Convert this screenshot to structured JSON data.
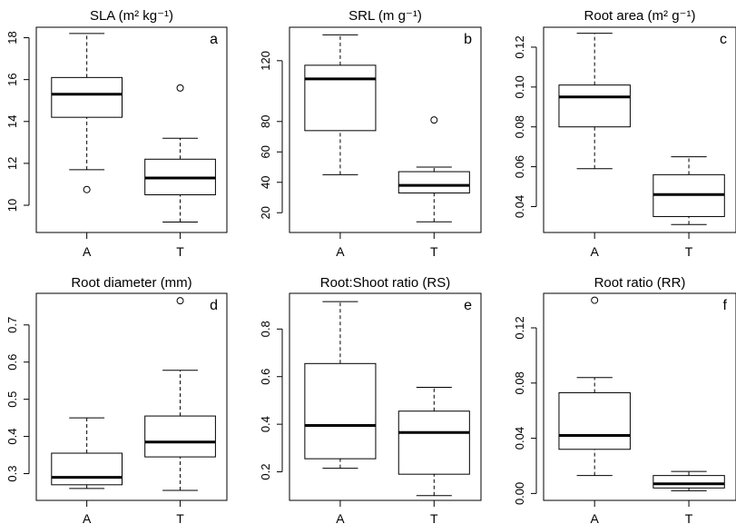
{
  "chart_data": [
    {
      "type": "box",
      "title": "SLA (m² kg⁻¹)",
      "panel_letter": "a",
      "categories": [
        "A",
        "T"
      ],
      "yticks": [
        10,
        12,
        14,
        16,
        18
      ],
      "ylim": [
        8.7,
        18.5
      ],
      "boxes": [
        {
          "category": "A",
          "whisker_low": 11.7,
          "q1": 14.2,
          "median": 15.3,
          "q3": 16.1,
          "whisker_high": 18.2,
          "outliers": [
            10.75
          ]
        },
        {
          "category": "T",
          "whisker_low": 9.2,
          "q1": 10.5,
          "median": 11.3,
          "q3": 12.2,
          "whisker_high": 13.2,
          "outliers": [
            15.6
          ]
        }
      ]
    },
    {
      "type": "box",
      "title": "SRL (m g⁻¹)",
      "panel_letter": "b",
      "categories": [
        "A",
        "T"
      ],
      "yticks": [
        20,
        40,
        60,
        80,
        120
      ],
      "ylim": [
        7,
        142
      ],
      "boxes": [
        {
          "category": "A",
          "whisker_low": 45,
          "q1": 74,
          "median": 108,
          "q3": 117,
          "whisker_high": 137,
          "outliers": []
        },
        {
          "category": "T",
          "whisker_low": 14,
          "q1": 33,
          "median": 38,
          "q3": 47,
          "whisker_high": 50,
          "outliers": [
            81
          ]
        }
      ]
    },
    {
      "type": "box",
      "title": "Root area (m² g⁻¹)",
      "panel_letter": "c",
      "categories": [
        "A",
        "T"
      ],
      "yticks": [
        0.04,
        0.06,
        0.08,
        0.1,
        0.12
      ],
      "ylim": [
        0.027,
        0.13
      ],
      "boxes": [
        {
          "category": "A",
          "whisker_low": 0.059,
          "q1": 0.08,
          "median": 0.095,
          "q3": 0.101,
          "whisker_high": 0.127,
          "outliers": []
        },
        {
          "category": "T",
          "whisker_low": 0.031,
          "q1": 0.035,
          "median": 0.046,
          "q3": 0.056,
          "whisker_high": 0.065,
          "outliers": []
        }
      ]
    },
    {
      "type": "box",
      "title": "Root diameter (mm)",
      "panel_letter": "d",
      "categories": [
        "A",
        "T"
      ],
      "yticks": [
        0.3,
        0.4,
        0.5,
        0.6,
        0.7
      ],
      "ylim": [
        0.228,
        0.785
      ],
      "boxes": [
        {
          "category": "A",
          "whisker_low": 0.26,
          "q1": 0.27,
          "median": 0.29,
          "q3": 0.355,
          "whisker_high": 0.45,
          "outliers": []
        },
        {
          "category": "T",
          "whisker_low": 0.255,
          "q1": 0.345,
          "median": 0.385,
          "q3": 0.455,
          "whisker_high": 0.578,
          "outliers": [
            0.765
          ]
        }
      ]
    },
    {
      "type": "box",
      "title": "Root:Shoot ratio (RS)",
      "panel_letter": "e",
      "categories": [
        "A",
        "T"
      ],
      "yticks": [
        0.2,
        0.4,
        0.6,
        0.8
      ],
      "ylim": [
        0.08,
        0.95
      ],
      "boxes": [
        {
          "category": "A",
          "whisker_low": 0.215,
          "q1": 0.255,
          "median": 0.395,
          "q3": 0.655,
          "whisker_high": 0.915,
          "outliers": []
        },
        {
          "category": "T",
          "whisker_low": 0.1,
          "q1": 0.19,
          "median": 0.365,
          "q3": 0.455,
          "whisker_high": 0.555,
          "outliers": []
        }
      ]
    },
    {
      "type": "box",
      "title": "Root ratio (RR)",
      "panel_letter": "f",
      "categories": [
        "A",
        "T"
      ],
      "yticks": [
        0.0,
        0.04,
        0.08,
        0.12
      ],
      "ylim": [
        -0.005,
        0.145
      ],
      "boxes": [
        {
          "category": "A",
          "whisker_low": 0.013,
          "q1": 0.032,
          "median": 0.042,
          "q3": 0.073,
          "whisker_high": 0.084,
          "outliers": [
            0.14
          ]
        },
        {
          "category": "T",
          "whisker_low": 0.002,
          "q1": 0.004,
          "median": 0.007,
          "q3": 0.013,
          "whisker_high": 0.016,
          "outliers": []
        }
      ]
    }
  ]
}
